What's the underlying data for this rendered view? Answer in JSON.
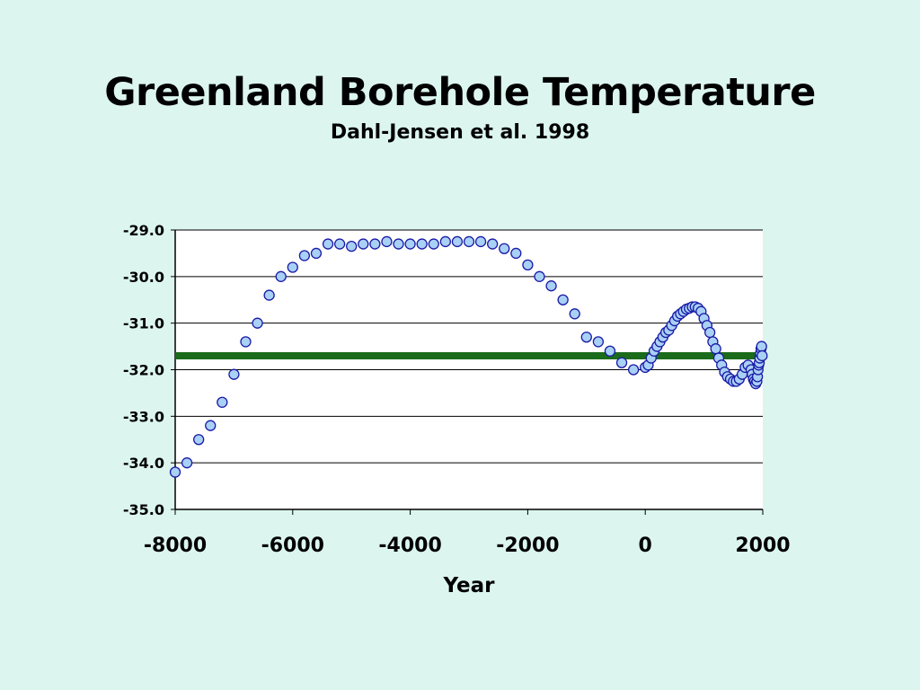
{
  "slide": {
    "title": "Greenland Borehole Temperature",
    "subtitle": "Dahl-Jensen et al. 1998"
  },
  "chart_data": {
    "type": "scatter",
    "title": "",
    "xlabel": "Year",
    "ylabel": "",
    "xlim": [
      -8000,
      2000
    ],
    "ylim": [
      -35,
      -29
    ],
    "xticks": [
      -8000,
      -6000,
      -4000,
      -2000,
      0,
      2000
    ],
    "xtick_labels": [
      "-8000",
      "-6000",
      "-4000",
      "-2000",
      "0",
      "2000"
    ],
    "yticks": [
      -29,
      -30,
      -31,
      -32,
      -33,
      -34,
      -35
    ],
    "ytick_labels": [
      "-29.0",
      "-30.0",
      "-31.0",
      "-32.0",
      "-33.0",
      "-34.0",
      "-35.0"
    ],
    "grid": "horizontal",
    "marker_fill": "#a9d0f5",
    "marker_stroke": "#1a1aa6",
    "reference_line": {
      "y": -31.7,
      "x_range": [
        -8000,
        2000
      ],
      "color": "#1a6b1a"
    },
    "series": [
      {
        "x": [
          -8000,
          -7800,
          -7600,
          -7400,
          -7200,
          -7000,
          -6800,
          -6600,
          -6400,
          -6200,
          -6000,
          -5800,
          -5600,
          -5400,
          -5200,
          -5000,
          -4800,
          -4600,
          -4400,
          -4200,
          -4000,
          -3800,
          -3600,
          -3400,
          -3200,
          -3000,
          -2800,
          -2600,
          -2400,
          -2200,
          -2000,
          -1800,
          -1600,
          -1400,
          -1200,
          -1000,
          -800,
          -600,
          -400,
          -200,
          0,
          50,
          100,
          150,
          200,
          250,
          300,
          350,
          400,
          450,
          500,
          550,
          600,
          650,
          700,
          750,
          800,
          850,
          900,
          950,
          1000,
          1050,
          1100,
          1150,
          1200,
          1250,
          1300,
          1350,
          1400,
          1450,
          1500,
          1550,
          1600,
          1650,
          1700,
          1750,
          1800,
          1820,
          1840,
          1860,
          1880,
          1900,
          1910,
          1920,
          1930,
          1940,
          1950,
          1960,
          1970,
          1980,
          1990
        ],
        "y": [
          -34.2,
          -34.0,
          -33.5,
          -33.2,
          -32.7,
          -32.1,
          -31.4,
          -31.0,
          -30.4,
          -30.0,
          -29.8,
          -29.55,
          -29.5,
          -29.3,
          -29.3,
          -29.35,
          -29.3,
          -29.3,
          -29.25,
          -29.3,
          -29.3,
          -29.3,
          -29.3,
          -29.25,
          -29.25,
          -29.25,
          -29.25,
          -29.3,
          -29.4,
          -29.5,
          -29.75,
          -30.0,
          -30.2,
          -30.5,
          -30.8,
          -31.3,
          -31.4,
          -31.6,
          -31.85,
          -32.0,
          -31.95,
          -31.9,
          -31.75,
          -31.6,
          -31.5,
          -31.4,
          -31.3,
          -31.2,
          -31.15,
          -31.05,
          -30.95,
          -30.85,
          -30.8,
          -30.75,
          -30.7,
          -30.68,
          -30.65,
          -30.65,
          -30.68,
          -30.75,
          -30.9,
          -31.05,
          -31.2,
          -31.4,
          -31.55,
          -31.75,
          -31.9,
          -32.05,
          -32.15,
          -32.2,
          -32.25,
          -32.25,
          -32.2,
          -32.1,
          -31.95,
          -31.9,
          -32.0,
          -32.1,
          -32.2,
          -32.25,
          -32.3,
          -32.25,
          -32.15,
          -32.0,
          -31.9,
          -31.85,
          -31.75,
          -31.65,
          -31.55,
          -31.5,
          -31.7
        ]
      }
    ]
  }
}
